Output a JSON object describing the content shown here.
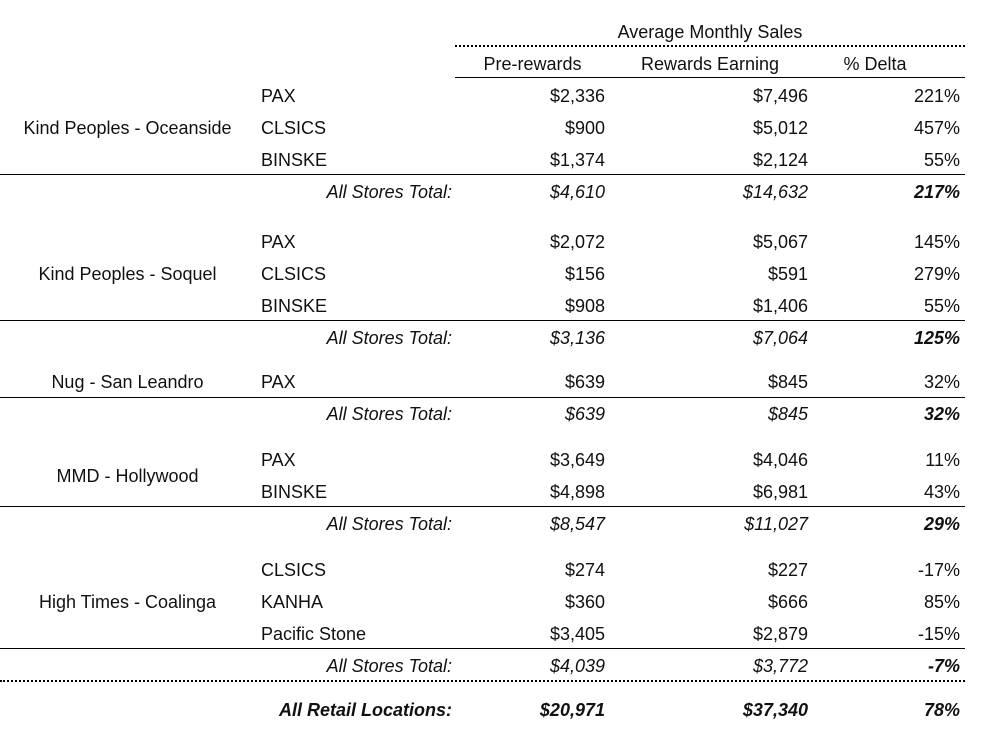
{
  "header": {
    "group_title": "Average Monthly Sales",
    "col_pre": "Pre-rewards",
    "col_rewards": "Rewards Earning",
    "col_delta": "% Delta"
  },
  "total_label": "All Stores Total:",
  "stores": [
    {
      "name": "Kind Peoples - Oceanside",
      "rows": [
        {
          "brand": "PAX",
          "pre": "$2,336",
          "rew": "$7,496",
          "delta": "221%"
        },
        {
          "brand": "CLSICS",
          "pre": "$900",
          "rew": "$5,012",
          "delta": "457%"
        },
        {
          "brand": "BINSKE",
          "pre": "$1,374",
          "rew": "$2,124",
          "delta": "55%"
        }
      ],
      "total": {
        "pre": "$4,610",
        "rew": "$14,632",
        "delta": "217%"
      }
    },
    {
      "name": "Kind Peoples - Soquel",
      "rows": [
        {
          "brand": "PAX",
          "pre": "$2,072",
          "rew": "$5,067",
          "delta": "145%"
        },
        {
          "brand": "CLSICS",
          "pre": "$156",
          "rew": "$591",
          "delta": "279%"
        },
        {
          "brand": "BINSKE",
          "pre": "$908",
          "rew": "$1,406",
          "delta": "55%"
        }
      ],
      "total": {
        "pre": "$3,136",
        "rew": "$7,064",
        "delta": "125%"
      }
    },
    {
      "name": "Nug - San Leandro",
      "rows": [
        {
          "brand": "PAX",
          "pre": "$639",
          "rew": "$845",
          "delta": "32%"
        }
      ],
      "total": {
        "pre": "$639",
        "rew": "$845",
        "delta": "32%"
      }
    },
    {
      "name": "MMD - Hollywood",
      "rows": [
        {
          "brand": "PAX",
          "pre": "$3,649",
          "rew": "$4,046",
          "delta": "11%"
        },
        {
          "brand": "BINSKE",
          "pre": "$4,898",
          "rew": "$6,981",
          "delta": "43%"
        }
      ],
      "total": {
        "pre": "$8,547",
        "rew": "$11,027",
        "delta": "29%"
      }
    },
    {
      "name": "High Times - Coalinga",
      "rows": [
        {
          "brand": "CLSICS",
          "pre": "$274",
          "rew": "$227",
          "delta": "-17%"
        },
        {
          "brand": "KANHA",
          "pre": "$360",
          "rew": "$666",
          "delta": "85%"
        },
        {
          "brand": "Pacific Stone",
          "pre": "$3,405",
          "rew": "$2,879",
          "delta": "-15%"
        }
      ],
      "total": {
        "pre": "$4,039",
        "rew": "$3,772",
        "delta": "-7%"
      }
    }
  ],
  "grand_total": {
    "label": "All Retail Locations:",
    "pre": "$20,971",
    "rew": "$37,340",
    "delta": "78%"
  }
}
